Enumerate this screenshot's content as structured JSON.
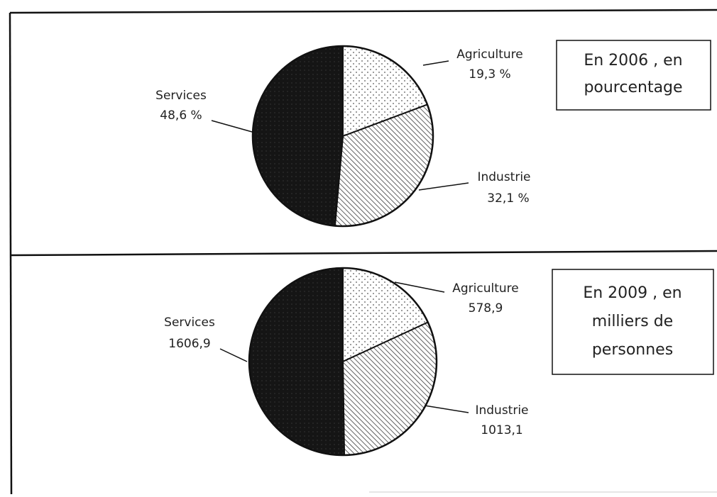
{
  "colors": {
    "ink": "#111111",
    "services_fill": "#151515",
    "industry_hatch": "#3a3a3a",
    "agriculture_dots": "#555555",
    "background": "#ffffff"
  },
  "chart_data": [
    {
      "type": "pie",
      "series_order": [
        "Agriculture",
        "Industrie",
        "Services"
      ],
      "labels": [
        "Agriculture",
        "Industrie",
        "Services"
      ],
      "values": [
        19.3,
        32.1,
        48.6
      ],
      "value_labels": [
        "19,3 %",
        "32,1 %",
        "48,6 %"
      ],
      "fill_patterns": [
        "dots",
        "hatch",
        "solid-dark"
      ],
      "legend_box": [
        "En 2006 , en",
        "pourcentage"
      ]
    },
    {
      "type": "pie",
      "series_order": [
        "Agriculture",
        "Industrie",
        "Services"
      ],
      "labels": [
        "Agriculture",
        "Industrie",
        "Services"
      ],
      "values": [
        578.9,
        1013.1,
        1606.9
      ],
      "value_labels": [
        "578,9",
        "1013,1",
        "1606,9"
      ],
      "fill_patterns": [
        "dots",
        "hatch",
        "solid-dark"
      ],
      "legend_box": [
        "En 2009 , en",
        "milliers de",
        "personnes"
      ]
    }
  ]
}
